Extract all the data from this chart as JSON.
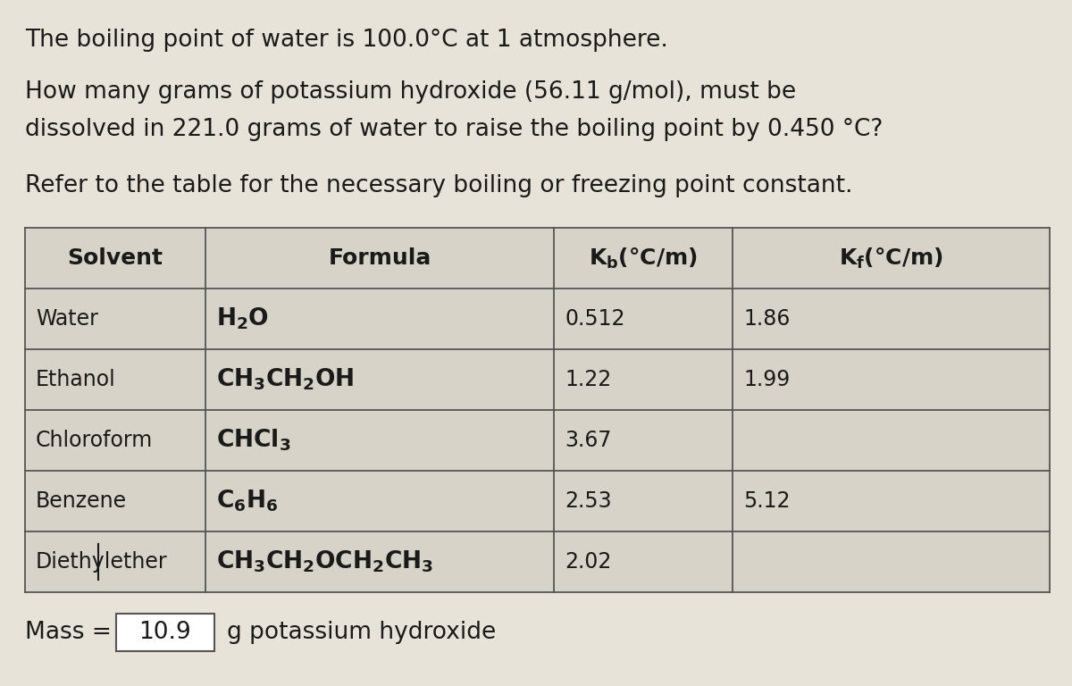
{
  "background_color": "#e8e3d8",
  "text_color": "#1a1a1a",
  "line1": "The boiling point of water is 100.0°C at 1 atmosphere.",
  "line2a": "How many grams of potassium hydroxide (56.11 g/mol), must be",
  "line2b": "dissolved in 221.0 grams of water to raise the boiling point by 0.450 °C?",
  "line3": "Refer to the table for the necessary boiling or freezing point constant.",
  "table_rows": [
    [
      "Water",
      "$\\mathbf{H_2O}$",
      "0.512",
      "1.86"
    ],
    [
      "Ethanol",
      "$\\mathbf{CH_3CH_2OH}$",
      "1.22",
      "1.99"
    ],
    [
      "Chloroform",
      "$\\mathbf{CHCl_3}$",
      "3.67",
      ""
    ],
    [
      "Benzene",
      "$\\mathbf{C_6H_6}$",
      "2.53",
      "5.12"
    ],
    [
      "Diethyl ether",
      "$\\mathbf{CH_3CH_2OCH_2CH_3}$",
      "2.02",
      ""
    ]
  ],
  "answer_value": "10.9",
  "cell_bg": "#d8d3c8",
  "header_bg": "#c8c3b8",
  "border_color": "#555555",
  "font_size_text": 19,
  "font_size_table": 17,
  "font_size_header": 18
}
